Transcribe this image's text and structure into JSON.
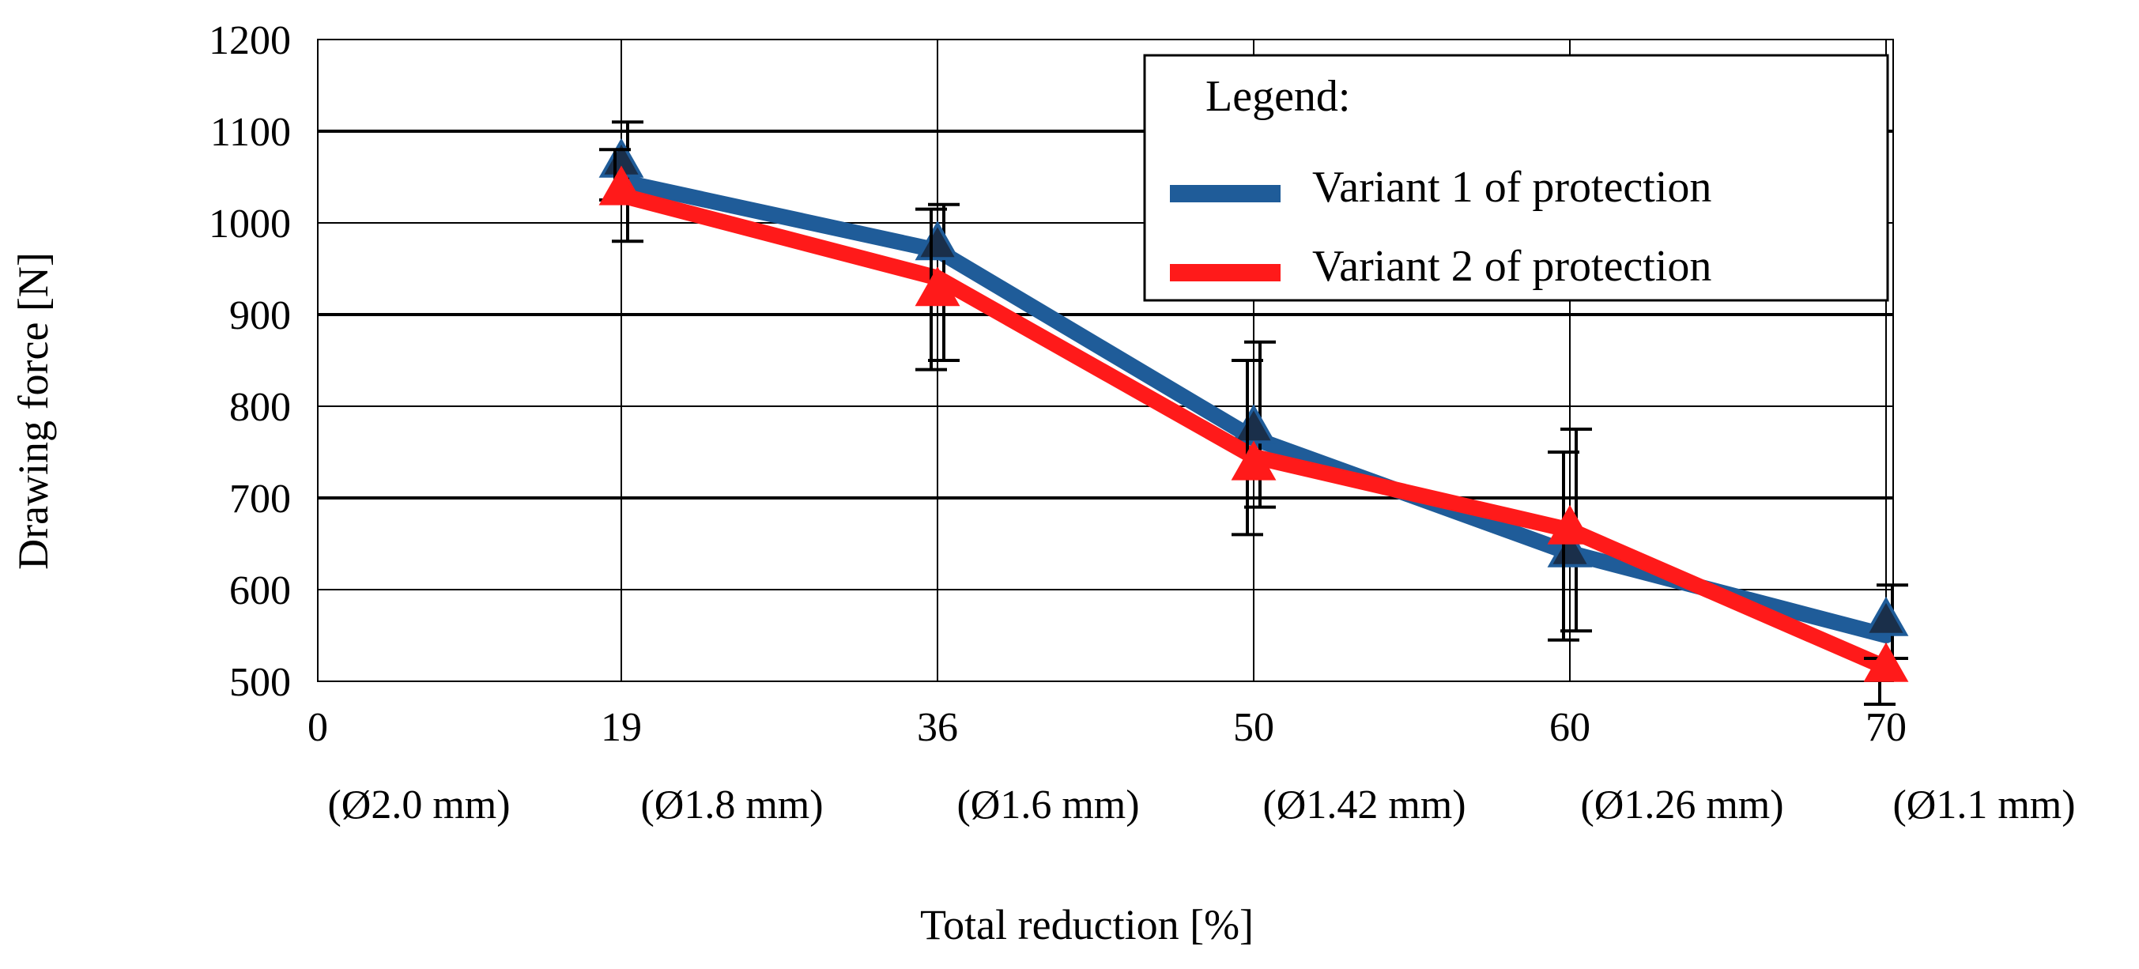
{
  "chart_data": {
    "type": "line",
    "title": "",
    "xlabel": "Total reduction [%]",
    "ylabel": "Drawing force [N]",
    "x_categories": [
      "0",
      "19",
      "36",
      "50",
      "60",
      "70"
    ],
    "x_sublabels": [
      "(Ø2.0 mm)",
      "(Ø1.8 mm)",
      "(Ø1.6 mm)",
      "(Ø1.42 mm)",
      "(Ø1.26 mm)",
      "(Ø1.1 mm)"
    ],
    "ylim": [
      500,
      1200
    ],
    "yticks": [
      "500",
      "600",
      "700",
      "800",
      "900",
      "1000",
      "1100",
      "1200"
    ],
    "grid": true,
    "legend": {
      "title": "Legend:",
      "position": "top-right"
    },
    "series": [
      {
        "name": "Variant 1 of protection",
        "color": "#1f5c99",
        "x_index": [
          1,
          2,
          3,
          4,
          5
        ],
        "values": [
          1045,
          970,
          765,
          640,
          550
        ],
        "markers": [
          1070,
          980,
          780,
          645,
          570
        ],
        "err_low": [
          980,
          850,
          690,
          555,
          525
        ],
        "err_high": [
          1110,
          1020,
          870,
          775,
          605
        ]
      },
      {
        "name": "Variant 2 of protection",
        "color": "#ff1a1a",
        "x_index": [
          1,
          2,
          3,
          4,
          5
        ],
        "values": [
          1030,
          940,
          745,
          665,
          515
        ],
        "markers": [
          1040,
          930,
          740,
          670,
          520
        ],
        "err_low": [
          1025,
          840,
          660,
          545,
          475
        ],
        "err_high": [
          1080,
          1015,
          850,
          750,
          525
        ]
      }
    ]
  }
}
